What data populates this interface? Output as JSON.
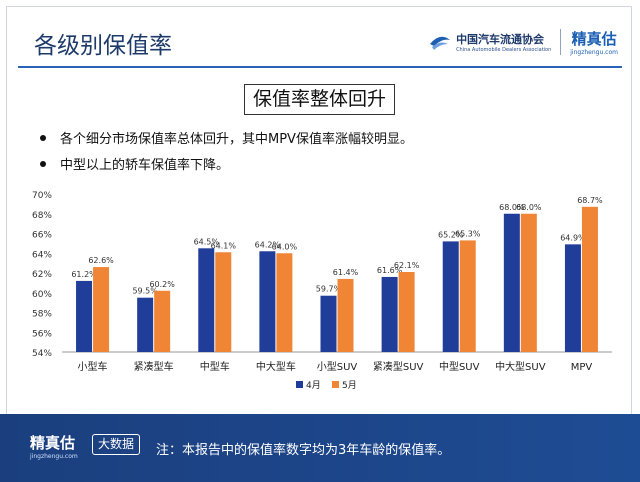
{
  "header": {
    "title": "各级别保值率",
    "association": {
      "name_cn": "中国汽车流通协会",
      "name_en": "China Automobile Dealers Association"
    },
    "brand": {
      "name": "精真估",
      "url": "jingzhengu.com"
    }
  },
  "subtitle": "保值率整体回升",
  "bullets": [
    "各个细分市场保值率总体回升，其中MPV保值率涨幅较明显。",
    "中型以上的轿车保值率下降。"
  ],
  "chart_data": {
    "type": "bar",
    "categories": [
      "小型车",
      "紧凑型车",
      "中型车",
      "中大型车",
      "小型SUV",
      "紧凑型SUV",
      "中型SUV",
      "中大型SUV",
      "MPV"
    ],
    "series": [
      {
        "name": "4月",
        "color": "#1f3d99",
        "values": [
          61.2,
          59.5,
          64.5,
          64.2,
          59.7,
          61.6,
          65.2,
          68.0,
          64.9
        ],
        "labels": [
          "61.2%",
          "59.5%",
          "64.5%",
          "64.2%",
          "59.7%",
          "61.6%",
          "65.2%",
          "68.0%",
          "64.9%"
        ]
      },
      {
        "name": "5月",
        "color": "#f08535",
        "values": [
          62.6,
          60.2,
          64.1,
          64.0,
          61.4,
          62.1,
          65.3,
          68.0,
          68.7
        ],
        "labels": [
          "62.6%",
          "60.2%",
          "64.1%",
          "64.0%",
          "61.4%",
          "62.1%",
          "65.3%",
          "68.0%",
          "68.7%"
        ]
      }
    ],
    "ylim": [
      54,
      70
    ],
    "yticks": [
      54,
      56,
      58,
      60,
      62,
      64,
      66,
      68,
      70
    ],
    "ytick_labels": [
      "54%",
      "56%",
      "58%",
      "60%",
      "62%",
      "64%",
      "66%",
      "68%",
      "70%"
    ],
    "legend_position": "bottom-center",
    "grid": false
  },
  "footer": {
    "brand": "精真估",
    "brand_url": "jingzhengu.com",
    "badge": "大数据",
    "note": "注：本报告中的保值率数字均为3年车龄的保值率。"
  },
  "colors": {
    "header_blue": "#1d3a6b",
    "footer_blue": "#1b3f7e",
    "series_1": "#1f3d99",
    "series_2": "#f08535"
  }
}
